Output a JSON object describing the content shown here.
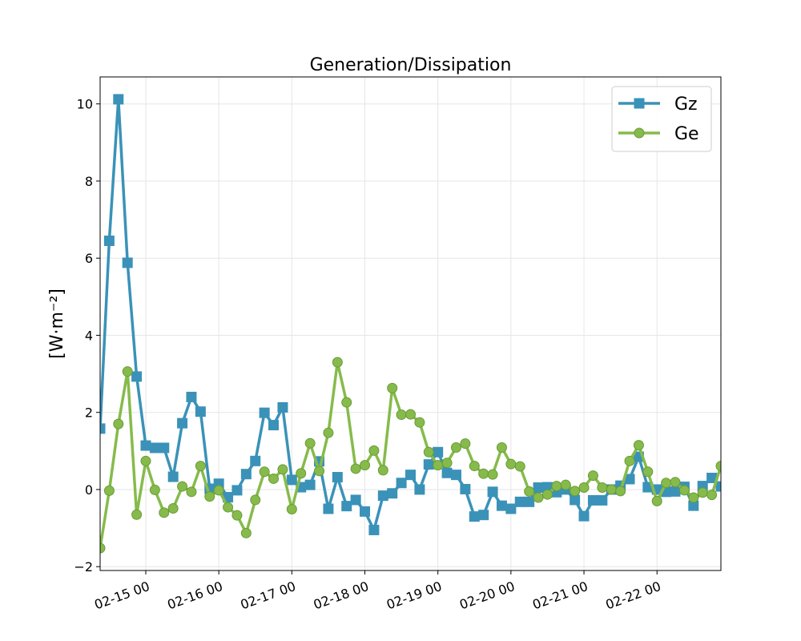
{
  "chart_data": {
    "type": "line",
    "title": "Generation/Dissipation",
    "xlabel": "",
    "ylabel": "[W·m⁻²]",
    "x_unit": "date (day index, 02-15 00 = 15.0)",
    "x_ticks": [
      {
        "x": 15,
        "label": "02-15 00"
      },
      {
        "x": 16,
        "label": "02-16 00"
      },
      {
        "x": 17,
        "label": "02-17 00"
      },
      {
        "x": 18,
        "label": "02-18 00"
      },
      {
        "x": 19,
        "label": "02-19 00"
      },
      {
        "x": 20,
        "label": "02-20 00"
      },
      {
        "x": 21,
        "label": "02-21 00"
      },
      {
        "x": 22,
        "label": "02-22 00"
      }
    ],
    "xlim": [
      14.375,
      22.875
    ],
    "ylim": [
      -2.1,
      10.7
    ],
    "y_ticks": [
      -2,
      0,
      2,
      4,
      6,
      8,
      10
    ],
    "grid": true,
    "legend_position": "top-right",
    "x": [
      14.375,
      14.5,
      14.625,
      14.75,
      14.875,
      15.0,
      15.125,
      15.25,
      15.375,
      15.5,
      15.625,
      15.75,
      15.875,
      16.0,
      16.125,
      16.25,
      16.375,
      16.5,
      16.625,
      16.75,
      16.875,
      17.0,
      17.125,
      17.25,
      17.375,
      17.5,
      17.625,
      17.75,
      17.875,
      18.0,
      18.125,
      18.25,
      18.375,
      18.5,
      18.625,
      18.75,
      18.875,
      19.0,
      19.125,
      19.25,
      19.375,
      19.5,
      19.625,
      19.75,
      19.875,
      20.0,
      20.125,
      20.25,
      20.375,
      20.5,
      20.625,
      20.75,
      20.875,
      21.0,
      21.125,
      21.25,
      21.375,
      21.5,
      21.625,
      21.75,
      21.875,
      22.0,
      22.125,
      22.25,
      22.375,
      22.5,
      22.625,
      22.75,
      22.875
    ],
    "series": [
      {
        "name": "Gz",
        "color": "#3a92b8",
        "marker": "square",
        "values": [
          1.58,
          6.45,
          10.12,
          5.88,
          2.93,
          1.14,
          1.08,
          1.08,
          0.33,
          1.72,
          2.4,
          2.02,
          0.02,
          0.15,
          -0.2,
          -0.02,
          0.4,
          0.74,
          1.99,
          1.67,
          2.13,
          0.25,
          0.06,
          0.12,
          0.73,
          -0.5,
          0.32,
          -0.43,
          -0.27,
          -0.57,
          -1.05,
          -0.16,
          -0.1,
          0.17,
          0.38,
          0.0,
          0.65,
          0.97,
          0.43,
          0.38,
          0.01,
          -0.7,
          -0.66,
          -0.06,
          -0.42,
          -0.5,
          -0.32,
          -0.32,
          0.05,
          0.06,
          -0.07,
          0.0,
          -0.27,
          -0.69,
          -0.28,
          -0.28,
          0.0,
          0.1,
          0.27,
          0.85,
          0.06,
          0.0,
          -0.06,
          -0.05,
          0.07,
          -0.42,
          0.09,
          0.3,
          0.08
        ]
      },
      {
        "name": "Ge",
        "color": "#86bb4b",
        "marker": "circle",
        "values": [
          -1.52,
          -0.03,
          1.7,
          3.06,
          -0.65,
          0.74,
          -0.01,
          -0.6,
          -0.49,
          0.08,
          -0.06,
          0.61,
          -0.18,
          -0.02,
          -0.46,
          -0.67,
          -1.13,
          -0.27,
          0.46,
          0.28,
          0.52,
          -0.51,
          0.42,
          1.2,
          0.48,
          1.47,
          3.3,
          2.26,
          0.54,
          0.63,
          1.01,
          0.5,
          2.63,
          1.94,
          1.95,
          1.74,
          0.97,
          0.63,
          0.69,
          1.09,
          1.19,
          0.61,
          0.41,
          0.39,
          1.09,
          0.66,
          0.6,
          -0.05,
          -0.21,
          -0.13,
          0.09,
          0.12,
          -0.04,
          0.05,
          0.36,
          0.05,
          0.0,
          -0.04,
          0.74,
          1.15,
          0.46,
          -0.3,
          0.17,
          0.19,
          -0.02,
          -0.21,
          -0.08,
          -0.14,
          0.61
        ]
      }
    ]
  }
}
